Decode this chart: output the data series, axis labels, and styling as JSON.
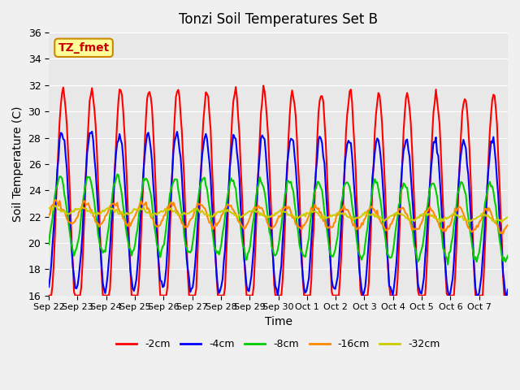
{
  "title": "Tonzi Soil Temperatures Set B",
  "xlabel": "Time",
  "ylabel": "Soil Temperature (C)",
  "ylim": [
    16,
    36
  ],
  "yticks": [
    16,
    18,
    20,
    22,
    24,
    26,
    28,
    30,
    32,
    34,
    36
  ],
  "series_labels": [
    "-2cm",
    "-4cm",
    "-8cm",
    "-16cm",
    "-32cm"
  ],
  "series_colors": [
    "#ff0000",
    "#0000ff",
    "#00cc00",
    "#ff8800",
    "#cccc00"
  ],
  "annotation_text": "TZ_fmet",
  "annotation_color": "#cc0000",
  "annotation_bg": "#ffff99",
  "annotation_border": "#cc8800",
  "background_color": "#e8e8e8",
  "fig_facecolor": "#f0f0f0",
  "n_days": 16,
  "tick_positions": [
    0,
    1,
    2,
    3,
    4,
    5,
    6,
    7,
    8,
    9,
    10,
    11,
    12,
    13,
    14,
    15
  ],
  "tick_labels": [
    "Sep 22",
    "Sep 23",
    "Sep 24",
    "Sep 25",
    "Sep 26",
    "Sep 27",
    "Sep 28",
    "Sep 29",
    "Sep 30",
    "Oct 1",
    "Oct 2",
    "Oct 3",
    "Oct 4",
    "Oct 5",
    "Oct 6",
    "Oct 7"
  ]
}
